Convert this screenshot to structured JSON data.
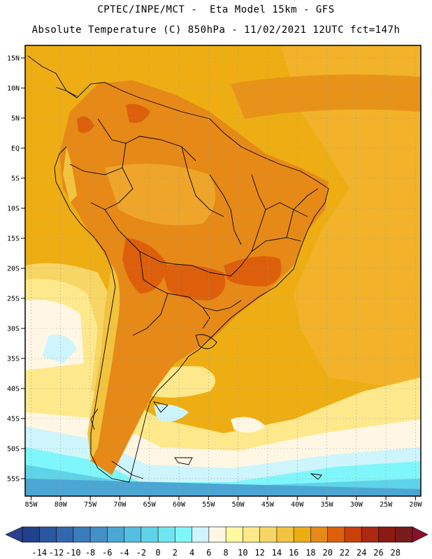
{
  "header": {
    "line1": "CPTEC/INPE/MCT -  Eta Model 15km - GFS",
    "line2": "Absolute Temperature (C) 850hPa - 11/02/2021 12UTC fct=147h"
  },
  "axes": {
    "lat_labels": [
      "15N",
      "10N",
      "5N",
      "EQ",
      "5S",
      "10S",
      "15S",
      "20S",
      "25S",
      "30S",
      "35S",
      "40S",
      "45S",
      "50S",
      "55S"
    ],
    "lon_labels": [
      "85W",
      "80W",
      "75W",
      "70W",
      "65W",
      "60W",
      "55W",
      "50W",
      "45W",
      "40W",
      "35W",
      "30W",
      "25W",
      "20W"
    ]
  },
  "colorbar": {
    "labels": [
      "-14",
      "-12",
      "-10",
      "-8",
      "-6",
      "-4",
      "-2",
      "0",
      "2",
      "4",
      "6",
      "8",
      "10",
      "12",
      "14",
      "16",
      "18",
      "20",
      "22",
      "24",
      "26",
      "28"
    ],
    "colors": [
      "#22418c",
      "#2b56a0",
      "#3366ad",
      "#3a7bbb",
      "#4490c8",
      "#4ca6d4",
      "#55bddf",
      "#5fd3e8",
      "#6ee6ef",
      "#7ff7fa",
      "#cdf5fb",
      "#fff7e4",
      "#fffaa0",
      "#fde98c",
      "#f8d665",
      "#f2c33f",
      "#eeae13",
      "#e68916",
      "#dd5f0b",
      "#c9400a",
      "#ab2813",
      "#8a1a12",
      "#7a1b1b"
    ]
  },
  "colors": {
    "land_hot": "#e08a1a",
    "ocean_warm": "#eea52a",
    "cold": "#5fd3e8"
  }
}
